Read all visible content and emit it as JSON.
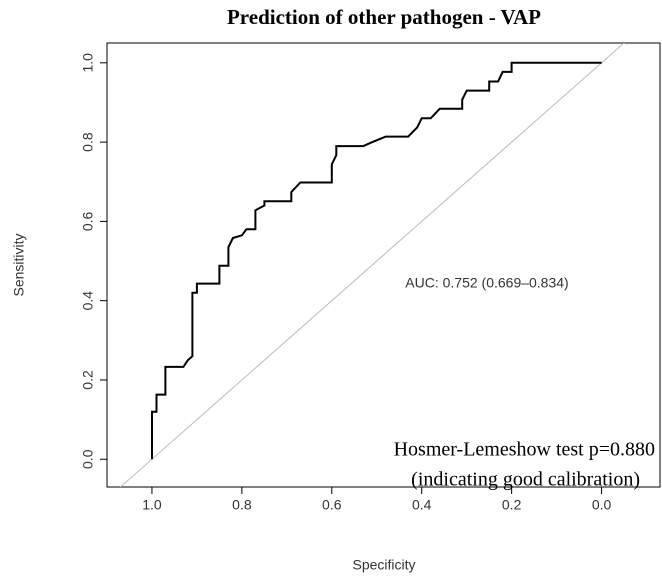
{
  "chart_data": {
    "type": "line",
    "title": "Prediction of other pathogen - VAP",
    "xlabel": "Specificity",
    "ylabel": "Sensitivity",
    "annotations": [
      "AUC: 0.752 (0.669–0.834)",
      "Hosmer-Lemeshow test p=0.880",
      "(indicating good calibration)"
    ],
    "x": [
      1.0,
      1.0,
      0.99,
      0.99,
      0.97,
      0.97,
      0.93,
      0.92,
      0.91,
      0.91,
      0.9,
      0.9,
      0.85,
      0.85,
      0.83,
      0.83,
      0.82,
      0.8,
      0.79,
      0.77,
      0.77,
      0.75,
      0.75,
      0.69,
      0.69,
      0.67,
      0.6,
      0.6,
      0.59,
      0.59,
      0.53,
      0.51,
      0.48,
      0.43,
      0.41,
      0.4,
      0.38,
      0.36,
      0.31,
      0.31,
      0.3,
      0.25,
      0.25,
      0.23,
      0.22,
      0.2,
      0.2,
      0.0
    ],
    "values": [
      0.0,
      0.12,
      0.12,
      0.163,
      0.163,
      0.233,
      0.233,
      0.25,
      0.26,
      0.42,
      0.42,
      0.443,
      0.443,
      0.488,
      0.488,
      0.535,
      0.558,
      0.565,
      0.58,
      0.58,
      0.628,
      0.64,
      0.651,
      0.651,
      0.674,
      0.698,
      0.698,
      0.744,
      0.767,
      0.79,
      0.79,
      0.8,
      0.814,
      0.814,
      0.837,
      0.86,
      0.86,
      0.884,
      0.884,
      0.907,
      0.93,
      0.93,
      0.953,
      0.953,
      0.977,
      0.977,
      1.0,
      1.0
    ],
    "color": "#000000",
    "xlim": [
      1.1,
      -0.13
    ],
    "ylim": [
      -0.07,
      1.05
    ],
    "xticks": [
      {
        "value": 1.0,
        "label": "1.0"
      },
      0.8,
      0.6,
      0.4,
      0.2,
      {
        "value": 0.0,
        "label": "0.0"
      }
    ],
    "yticks": [
      {
        "value": 0.0,
        "label": "0.0"
      },
      0.2,
      0.4,
      0.6,
      0.8,
      {
        "value": 1.0,
        "label": "1.0"
      }
    ]
  }
}
